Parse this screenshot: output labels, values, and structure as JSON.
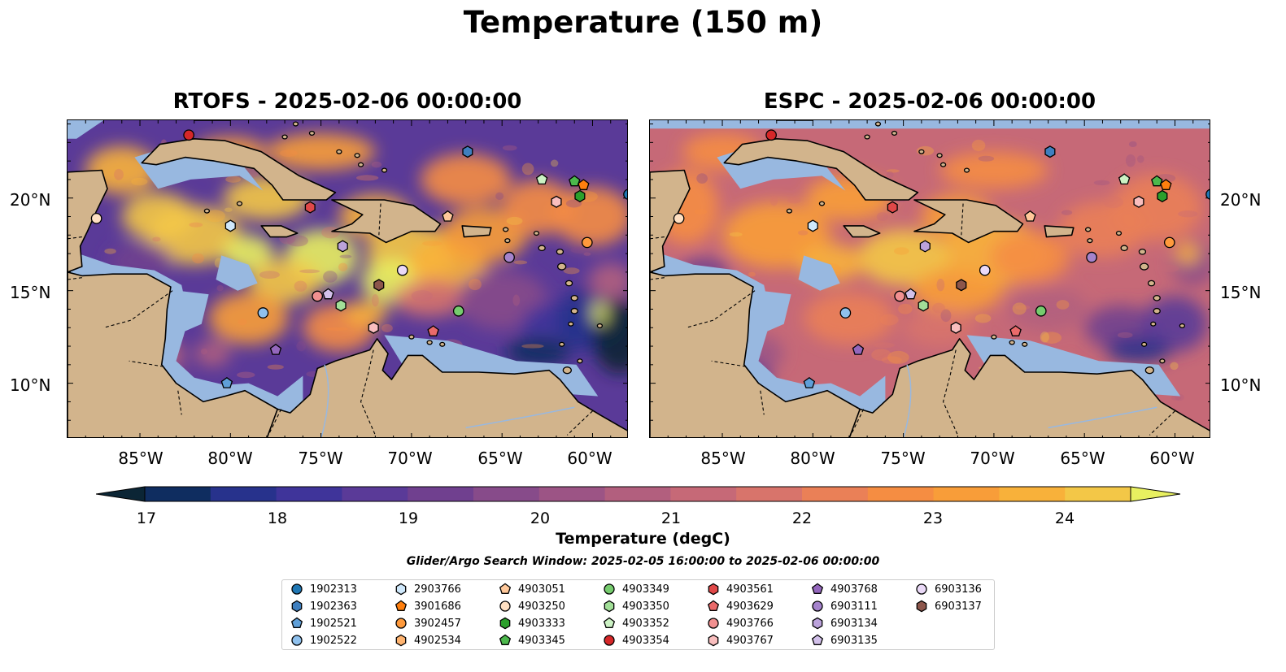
{
  "title": "Temperature (150 m)",
  "panels": [
    {
      "title": "RTOFS - 2025-02-06 00:00:00"
    },
    {
      "title": "ESPC - 2025-02-06 00:00:00"
    }
  ],
  "lat_ticks": [
    "20°N",
    "15°N",
    "10°N"
  ],
  "lon_ticks": [
    "85°W",
    "80°W",
    "75°W",
    "70°W",
    "65°W",
    "60°W"
  ],
  "colorbar": {
    "label": "Temperature (degC)",
    "ticks": [
      "17",
      "18",
      "19",
      "20",
      "21",
      "22",
      "23",
      "24"
    ],
    "range": [
      17,
      24.5
    ],
    "extend": "both",
    "colormap": [
      "#0b2535",
      "#0f2d60",
      "#27328c",
      "#3f349a",
      "#5a3a98",
      "#70408f",
      "#874b8a",
      "#9c5485",
      "#b25f7e",
      "#c66977",
      "#d8746b",
      "#ea8057",
      "#f58d42",
      "#f89d39",
      "#f8b13a",
      "#f3c747",
      "#e8f060"
    ]
  },
  "search_window": "Glider/Argo Search Window: 2025-02-05 16:00:00 to 2025-02-06 00:00:00",
  "legend": [
    {
      "id": "1902313",
      "marker": "circle",
      "color": "#1f77b4"
    },
    {
      "id": "1902363",
      "marker": "hexagon",
      "color": "#3f7fbf"
    },
    {
      "id": "1902521",
      "marker": "pentagon",
      "color": "#5f9fd8"
    },
    {
      "id": "1902522",
      "marker": "circle",
      "color": "#8fc1ee"
    },
    {
      "id": "2903766",
      "marker": "hexagon",
      "color": "#cfe8fb"
    },
    {
      "id": "3901686",
      "marker": "pentagon",
      "color": "#ff7f0e"
    },
    {
      "id": "3902457",
      "marker": "circle",
      "color": "#ff9a3c"
    },
    {
      "id": "4902534",
      "marker": "hexagon",
      "color": "#ffb470"
    },
    {
      "id": "4903051",
      "marker": "pentagon",
      "color": "#ffc89a"
    },
    {
      "id": "4903250",
      "marker": "circle",
      "color": "#ffe0c2"
    },
    {
      "id": "4903333",
      "marker": "hexagon",
      "color": "#2ca02c"
    },
    {
      "id": "4903345",
      "marker": "pentagon",
      "color": "#4cb84c"
    },
    {
      "id": "4903349",
      "marker": "circle",
      "color": "#76cc6e"
    },
    {
      "id": "4903350",
      "marker": "hexagon",
      "color": "#a2df98"
    },
    {
      "id": "4903352",
      "marker": "pentagon",
      "color": "#ccf2c4"
    },
    {
      "id": "4903354",
      "marker": "circle",
      "color": "#d62728"
    },
    {
      "id": "4903561",
      "marker": "hexagon",
      "color": "#e04848"
    },
    {
      "id": "4903629",
      "marker": "pentagon",
      "color": "#ea6a6a"
    },
    {
      "id": "4903766",
      "marker": "circle",
      "color": "#f29090"
    },
    {
      "id": "4903767",
      "marker": "hexagon",
      "color": "#f9bebe"
    },
    {
      "id": "4903768",
      "marker": "pentagon",
      "color": "#9467bd"
    },
    {
      "id": "6903111",
      "marker": "circle",
      "color": "#a583cc"
    },
    {
      "id": "6903134",
      "marker": "hexagon",
      "color": "#bba2db"
    },
    {
      "id": "6903135",
      "marker": "pentagon",
      "color": "#d2c0ea"
    },
    {
      "id": "6903136",
      "marker": "circle",
      "color": "#ead9f7"
    },
    {
      "id": "6903137",
      "marker": "hexagon",
      "color": "#8c564b"
    }
  ],
  "float_positions": [
    {
      "id": "4903354",
      "lon": -82.3,
      "lat": 23.4
    },
    {
      "id": "1902363",
      "lon": -66.9,
      "lat": 22.5
    },
    {
      "id": "4903352",
      "lon": -62.8,
      "lat": 21.0
    },
    {
      "id": "4903345",
      "lon": -61.0,
      "lat": 20.9
    },
    {
      "id": "3901686",
      "lon": -60.5,
      "lat": 20.7
    },
    {
      "id": "4903333",
      "lon": -60.7,
      "lat": 20.1
    },
    {
      "id": "1902313",
      "lon": -58.0,
      "lat": 20.2
    },
    {
      "id": "4903767",
      "lon": -62.0,
      "lat": 19.8
    },
    {
      "id": "4903561",
      "lon": -75.6,
      "lat": 19.5
    },
    {
      "id": "4903051",
      "lon": -68.0,
      "lat": 19.0
    },
    {
      "id": "4903250",
      "lon": -87.4,
      "lat": 18.9
    },
    {
      "id": "2903766",
      "lon": -80.0,
      "lat": 18.5
    },
    {
      "id": "3902457",
      "lon": -60.3,
      "lat": 17.6
    },
    {
      "id": "6903134",
      "lon": -73.8,
      "lat": 17.4
    },
    {
      "id": "6903111",
      "lon": -64.6,
      "lat": 16.8
    },
    {
      "id": "6903136",
      "lon": -70.5,
      "lat": 16.1
    },
    {
      "id": "6903137",
      "lon": -71.8,
      "lat": 15.3
    },
    {
      "id": "4903766",
      "lon": -75.2,
      "lat": 14.7
    },
    {
      "id": "6903135",
      "lon": -74.6,
      "lat": 14.8
    },
    {
      "id": "4903350",
      "lon": -73.9,
      "lat": 14.2
    },
    {
      "id": "1902522",
      "lon": -78.2,
      "lat": 13.8
    },
    {
      "id": "4903349",
      "lon": -67.4,
      "lat": 13.9
    },
    {
      "id": "4903767",
      "lon": -72.1,
      "lat": 13.0
    },
    {
      "id": "4903629",
      "lon": -68.8,
      "lat": 12.8
    },
    {
      "id": "4903768",
      "lon": -77.5,
      "lat": 11.8
    },
    {
      "id": "1902521",
      "lon": -80.2,
      "lat": 10.0
    }
  ]
}
